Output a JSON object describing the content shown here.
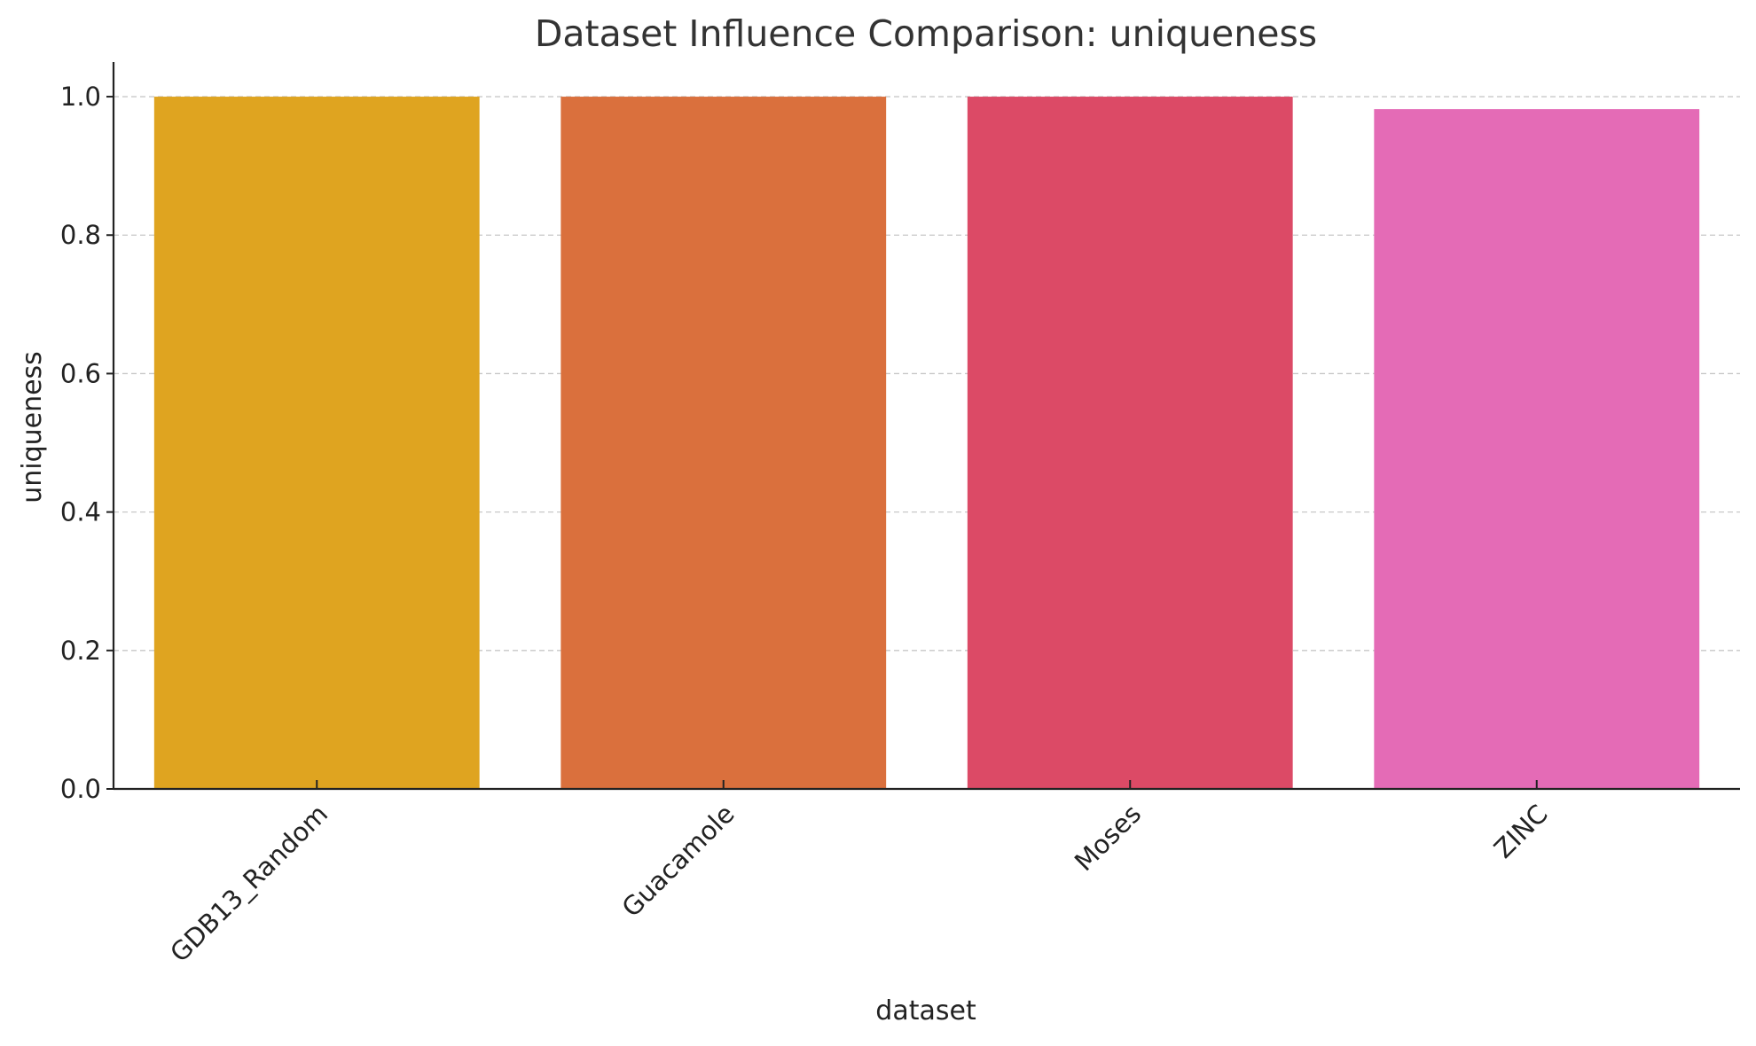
{
  "chart_data": {
    "type": "bar",
    "title": "Dataset Influence Comparison: uniqueness",
    "xlabel": "dataset",
    "ylabel": "uniqueness",
    "categories": [
      "GDB13_Random",
      "Guacamole",
      "Moses",
      "ZINC"
    ],
    "values": [
      1.0,
      1.0,
      1.0,
      0.982
    ],
    "colors": [
      "#dfa420",
      "#da703d",
      "#dc4a66",
      "#e46bb6"
    ],
    "ylim": [
      0,
      1.05
    ],
    "yticks": [
      "0.0",
      "0.2",
      "0.4",
      "0.6",
      "0.8",
      "1.0"
    ],
    "ytick_values": [
      0,
      0.2,
      0.4,
      0.6,
      0.8,
      1.0
    ],
    "grid": "horizontal dashed",
    "legend": "none"
  }
}
